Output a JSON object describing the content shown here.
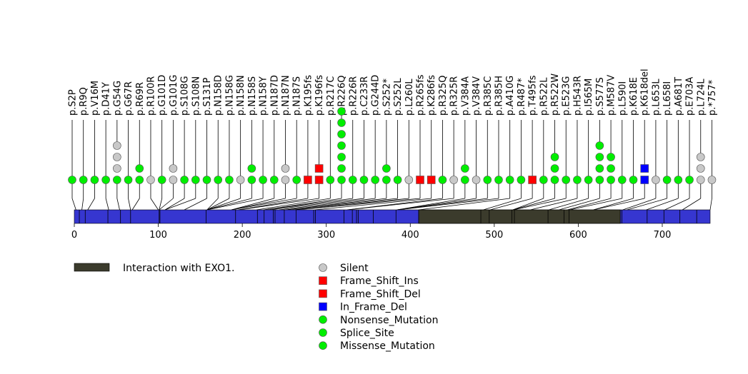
{
  "chart_data": {
    "type": "lollipop",
    "title": "",
    "xlabel": "",
    "ylabel": "",
    "xlim": [
      0,
      757
    ],
    "x_ticks": [
      0,
      100,
      200,
      300,
      400,
      500,
      600,
      700
    ],
    "protein_length": 757,
    "domains": [
      {
        "name": "Interaction with EXO1.",
        "start": 410,
        "end": 650,
        "color": "#3b3b2c"
      }
    ],
    "protein_color": "#3636d0",
    "segment_boundaries": [
      6,
      13,
      40,
      55,
      67,
      101,
      102,
      157,
      192,
      218,
      226,
      237,
      239,
      250,
      264,
      285,
      287,
      321,
      331,
      336,
      338,
      356,
      383,
      410,
      484,
      494,
      521,
      524,
      564,
      583,
      589,
      650,
      652,
      682,
      702,
      721,
      741
    ],
    "mutation_types": [
      {
        "name": "Silent",
        "shape": "circle",
        "color": "#c8c8c8"
      },
      {
        "name": "Frame_Shift_Ins",
        "shape": "square",
        "color": "#ff0000"
      },
      {
        "name": "Frame_Shift_Del",
        "shape": "square",
        "color": "#ff0000"
      },
      {
        "name": "In_Frame_Del",
        "shape": "square",
        "color": "#0000ff"
      },
      {
        "name": "Nonsense_Mutation",
        "shape": "circle",
        "color": "#00ee00"
      },
      {
        "name": "Splice_Site",
        "shape": "circle",
        "color": "#00ee00"
      },
      {
        "name": "Missense_Mutation",
        "shape": "circle",
        "color": "#00ee00"
      }
    ],
    "mutations": [
      {
        "label": "p.S2P",
        "pos": 2,
        "stack": [
          "Missense_Mutation"
        ]
      },
      {
        "label": "p.R9Q",
        "pos": 9,
        "stack": [
          "Missense_Mutation"
        ]
      },
      {
        "label": "p.V16M",
        "pos": 16,
        "stack": [
          "Missense_Mutation"
        ]
      },
      {
        "label": "p.D41Y",
        "pos": 41,
        "stack": [
          "Missense_Mutation"
        ]
      },
      {
        "label": "p.G54G",
        "pos": 54,
        "stack": [
          "Missense_Mutation",
          "Silent",
          "Silent",
          "Silent"
        ]
      },
      {
        "label": "p.G67R",
        "pos": 67,
        "stack": [
          "Missense_Mutation"
        ]
      },
      {
        "label": "p.R69R",
        "pos": 69,
        "stack": [
          "Missense_Mutation",
          "Missense_Mutation"
        ]
      },
      {
        "label": "p.R100R",
        "pos": 100,
        "stack": [
          "Silent"
        ]
      },
      {
        "label": "p.G101D",
        "pos": 101,
        "stack": [
          "Missense_Mutation"
        ]
      },
      {
        "label": "p.G101G",
        "pos": 101,
        "stack": [
          "Silent",
          "Silent"
        ]
      },
      {
        "label": "p.S108G",
        "pos": 108,
        "stack": [
          "Missense_Mutation"
        ]
      },
      {
        "label": "p.S108N",
        "pos": 108,
        "stack": [
          "Missense_Mutation"
        ]
      },
      {
        "label": "p.S131P",
        "pos": 131,
        "stack": [
          "Missense_Mutation"
        ]
      },
      {
        "label": "p.N158D",
        "pos": 158,
        "stack": [
          "Missense_Mutation"
        ]
      },
      {
        "label": "p.N158G",
        "pos": 158,
        "stack": [
          "Missense_Mutation"
        ]
      },
      {
        "label": "p.N158N",
        "pos": 158,
        "stack": [
          "Silent"
        ]
      },
      {
        "label": "p.N158S",
        "pos": 158,
        "stack": [
          "Missense_Mutation",
          "Missense_Mutation"
        ]
      },
      {
        "label": "p.N158Y",
        "pos": 158,
        "stack": [
          "Missense_Mutation"
        ]
      },
      {
        "label": "p.N187D",
        "pos": 187,
        "stack": [
          "Missense_Mutation"
        ]
      },
      {
        "label": "p.N187N",
        "pos": 187,
        "stack": [
          "Silent",
          "Silent"
        ]
      },
      {
        "label": "p.N187S",
        "pos": 187,
        "stack": [
          "Missense_Mutation"
        ]
      },
      {
        "label": "p.K195fs",
        "pos": 195,
        "stack": [
          "Frame_Shift_Del"
        ]
      },
      {
        "label": "p.K196fs",
        "pos": 196,
        "stack": [
          "Frame_Shift_Del",
          "Frame_Shift_Ins"
        ]
      },
      {
        "label": "p.R217C",
        "pos": 217,
        "stack": [
          "Missense_Mutation"
        ]
      },
      {
        "label": "p.R226Q",
        "pos": 226,
        "stack": [
          "Missense_Mutation",
          "Missense_Mutation",
          "Missense_Mutation",
          "Missense_Mutation",
          "Missense_Mutation",
          "Missense_Mutation",
          "Missense_Mutation"
        ]
      },
      {
        "label": "p.R226R",
        "pos": 226,
        "stack": [
          "Missense_Mutation"
        ]
      },
      {
        "label": "p.C233R",
        "pos": 233,
        "stack": [
          "Missense_Mutation"
        ]
      },
      {
        "label": "p.G244D",
        "pos": 244,
        "stack": [
          "Missense_Mutation"
        ]
      },
      {
        "label": "p.S252*",
        "pos": 252,
        "stack": [
          "Nonsense_Mutation",
          "Nonsense_Mutation"
        ]
      },
      {
        "label": "p.S252L",
        "pos": 252,
        "stack": [
          "Missense_Mutation"
        ]
      },
      {
        "label": "p.L260L",
        "pos": 260,
        "stack": [
          "Silent"
        ]
      },
      {
        "label": "p.R265fs",
        "pos": 265,
        "stack": [
          "Frame_Shift_Del"
        ]
      },
      {
        "label": "p.K286fs",
        "pos": 286,
        "stack": [
          "Frame_Shift_Del"
        ]
      },
      {
        "label": "p.R325Q",
        "pos": 325,
        "stack": [
          "Missense_Mutation"
        ]
      },
      {
        "label": "p.R325R",
        "pos": 325,
        "stack": [
          "Silent"
        ]
      },
      {
        "label": "p.V384A",
        "pos": 384,
        "stack": [
          "Missense_Mutation",
          "Missense_Mutation"
        ]
      },
      {
        "label": "p.V384V",
        "pos": 384,
        "stack": [
          "Silent"
        ]
      },
      {
        "label": "p.R385C",
        "pos": 385,
        "stack": [
          "Missense_Mutation"
        ]
      },
      {
        "label": "p.R385H",
        "pos": 385,
        "stack": [
          "Missense_Mutation"
        ]
      },
      {
        "label": "p.A410G",
        "pos": 410,
        "stack": [
          "Missense_Mutation"
        ]
      },
      {
        "label": "p.R487*",
        "pos": 487,
        "stack": [
          "Nonsense_Mutation"
        ]
      },
      {
        "label": "p.T495fs",
        "pos": 495,
        "stack": [
          "Frame_Shift_Del"
        ]
      },
      {
        "label": "p.R522L",
        "pos": 522,
        "stack": [
          "Missense_Mutation"
        ]
      },
      {
        "label": "p.R522W",
        "pos": 522,
        "stack": [
          "Missense_Mutation",
          "Missense_Mutation",
          "Missense_Mutation"
        ]
      },
      {
        "label": "p.E523G",
        "pos": 523,
        "stack": [
          "Missense_Mutation"
        ]
      },
      {
        "label": "p.H543R",
        "pos": 543,
        "stack": [
          "Missense_Mutation"
        ]
      },
      {
        "label": "p.I565M",
        "pos": 565,
        "stack": [
          "Missense_Mutation"
        ]
      },
      {
        "label": "p.S577S",
        "pos": 577,
        "stack": [
          "Missense_Mutation",
          "Missense_Mutation",
          "Missense_Mutation",
          "Missense_Mutation"
        ]
      },
      {
        "label": "p.M587V",
        "pos": 587,
        "stack": [
          "Missense_Mutation",
          "Missense_Mutation",
          "Missense_Mutation"
        ]
      },
      {
        "label": "p.L590I",
        "pos": 590,
        "stack": [
          "Missense_Mutation"
        ]
      },
      {
        "label": "p.K618E",
        "pos": 618,
        "stack": [
          "Missense_Mutation"
        ]
      },
      {
        "label": "p.K618del",
        "pos": 618,
        "stack": [
          "In_Frame_Del",
          "In_Frame_Del"
        ]
      },
      {
        "label": "p.L653L",
        "pos": 653,
        "stack": [
          "Silent"
        ]
      },
      {
        "label": "p.L658I",
        "pos": 658,
        "stack": [
          "Missense_Mutation"
        ]
      },
      {
        "label": "p.A681T",
        "pos": 681,
        "stack": [
          "Missense_Mutation"
        ]
      },
      {
        "label": "p.E703A",
        "pos": 703,
        "stack": [
          "Missense_Mutation"
        ]
      },
      {
        "label": "p.L724L",
        "pos": 724,
        "stack": [
          "Silent",
          "Silent",
          "Silent"
        ]
      },
      {
        "label": "p.*757*",
        "pos": 757,
        "stack": [
          "Silent"
        ]
      }
    ]
  }
}
